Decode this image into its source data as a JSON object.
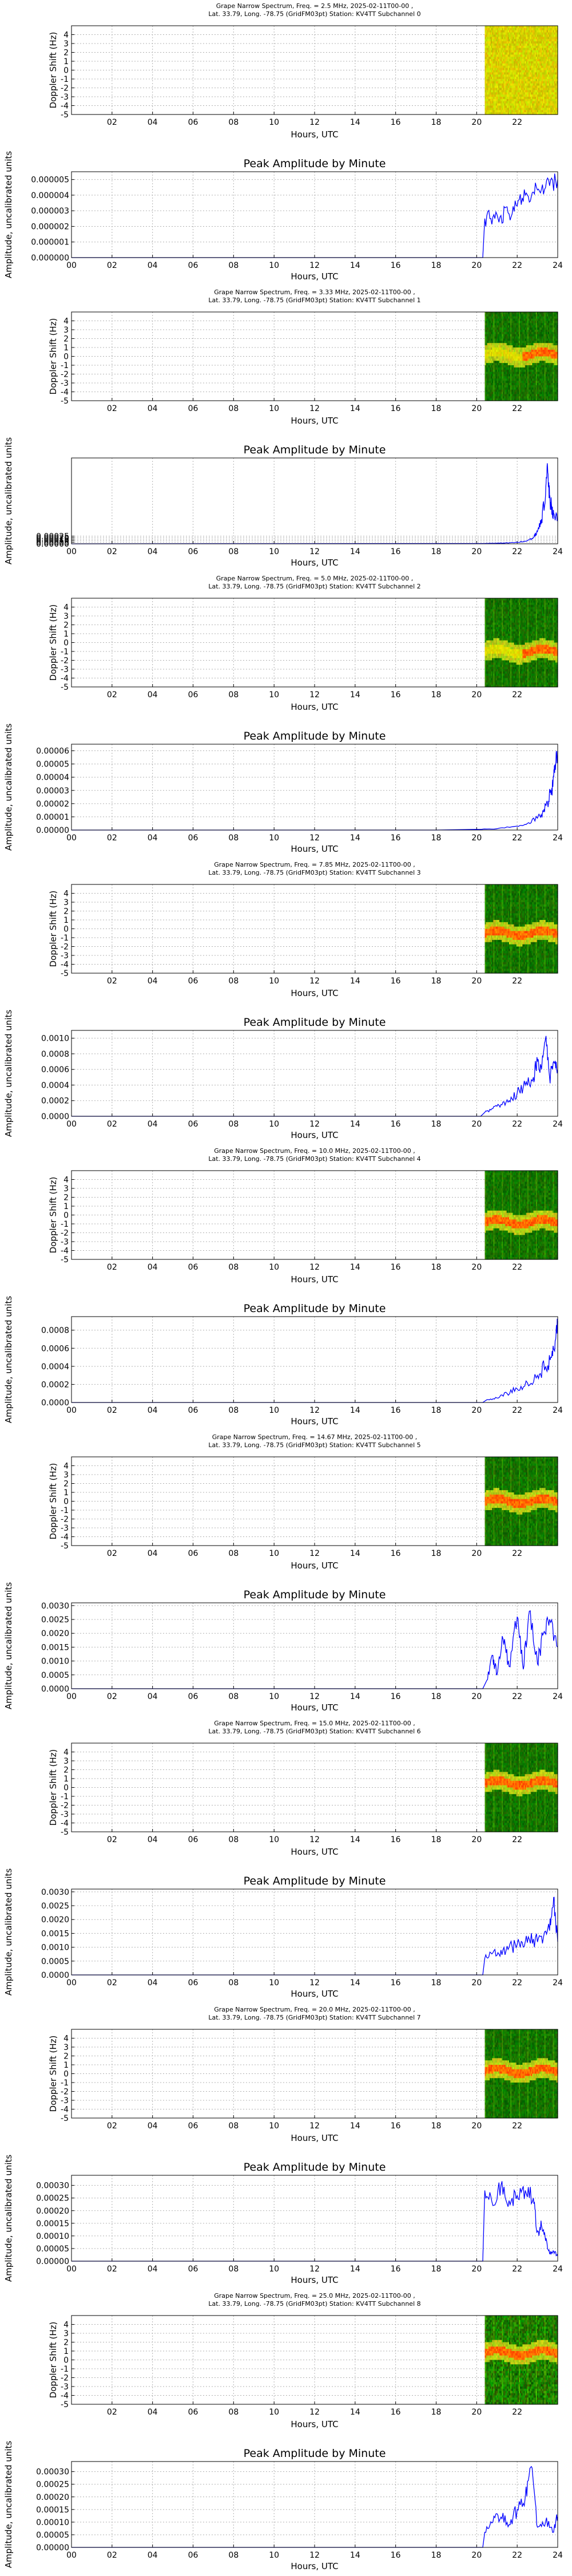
{
  "spectrum_common": {
    "ylabel": "Doppler Shift (Hz)",
    "xlabel": "Hours, UTC",
    "xticks": [
      "02",
      "04",
      "06",
      "08",
      "10",
      "12",
      "14",
      "16",
      "18",
      "20",
      "22"
    ],
    "yticks": [
      "4",
      "3",
      "2",
      "1",
      "0",
      "-1",
      "-2",
      "-3",
      "-4",
      "-5"
    ]
  },
  "amplitude_common": {
    "title": "Peak Amplitude by Minute",
    "ylabel": "Amplitude, uncalibrated units",
    "xlabel": "Hours, UTC",
    "xticks": [
      "00",
      "02",
      "04",
      "06",
      "08",
      "10",
      "12",
      "14",
      "16",
      "18",
      "20",
      "22",
      "24"
    ]
  },
  "colors": {
    "line": "#0000ff",
    "spec_bg_low": "#006400",
    "spec_hot": "#ff5a00",
    "grid": "#b0b0b0"
  },
  "chart_data": [
    {
      "type": "heatmap",
      "subchannel": 0,
      "title_line1": "Grape Narrow Spectrum, Freq. = 2.5 MHz, 2025-02-11T00-00 ,",
      "title_line2": "Lat.  33.79, Long. -78.75 (GridFM03pt) Station: KV4TT Subchannel 0",
      "data_start_hour": 20.4,
      "xlim": [
        0,
        24
      ],
      "ylim": [
        -5,
        5
      ],
      "style": "yellow",
      "trace_hz": null
    },
    {
      "type": "line",
      "subchannel": 0,
      "yticks": [
        "0.000000",
        "0.000001",
        "0.000002",
        "0.000003",
        "0.000004",
        "0.000005"
      ],
      "ylim": [
        0,
        5.5e-06
      ],
      "xlim": [
        0,
        24
      ],
      "x": [
        0,
        20.3,
        20.4,
        20.8,
        21.2,
        21.6,
        22.0,
        22.4,
        22.8,
        23.2,
        23.6,
        24.0
      ],
      "y": [
        0,
        0,
        2.5e-06,
        2.6e-06,
        2.7e-06,
        2.8e-06,
        3.3e-06,
        4e-06,
        4.2e-06,
        4.4e-06,
        4.6e-06,
        5e-06
      ]
    },
    {
      "type": "heatmap",
      "subchannel": 1,
      "title_line1": "Grape Narrow Spectrum, Freq. = 3.33 MHz, 2025-02-11T00-00 ,",
      "title_line2": "Lat.  33.79, Long. -78.75 (GridFM03pt) Station: KV4TT Subchannel 1",
      "data_start_hour": 20.4,
      "xlim": [
        0,
        24
      ],
      "ylim": [
        -5,
        5
      ],
      "style": "green",
      "trace_hz": 0.2
    },
    {
      "type": "line",
      "subchannel": 1,
      "yticks": [
        "0.00000",
        "0.00005",
        "0.00010",
        "0.00015",
        "0.00020",
        "0.00025"
      ],
      "ylim": [
        0,
        0.0028
      ],
      "xlim": [
        0,
        24
      ],
      "x": [
        0,
        20.4,
        21.0,
        21.5,
        22.0,
        22.5,
        22.8,
        23.0,
        23.2,
        23.4,
        23.5,
        23.6,
        23.7,
        23.8,
        24.0
      ],
      "y": [
        0,
        1e-05,
        2e-05,
        3e-05,
        5e-05,
        0.0001,
        0.0002,
        0.0004,
        0.0008,
        0.0016,
        0.0025,
        0.0015,
        0.0012,
        0.001,
        0.0008
      ]
    },
    {
      "type": "heatmap",
      "subchannel": 2,
      "title_line1": "Grape Narrow Spectrum, Freq. = 5.0 MHz, 2025-02-11T00-00 ,",
      "title_line2": "Lat.  33.79, Long. -78.75 (GridFM03pt) Station: KV4TT Subchannel 2",
      "data_start_hour": 20.4,
      "xlim": [
        0,
        24
      ],
      "ylim": [
        -5,
        5
      ],
      "style": "green",
      "trace_hz": -1.0
    },
    {
      "type": "line",
      "subchannel": 2,
      "yticks": [
        "0.00000",
        "0.00001",
        "0.00002",
        "0.00003",
        "0.00004",
        "0.00005",
        "0.00006"
      ],
      "ylim": [
        0,
        6.5e-05
      ],
      "xlim": [
        0,
        24
      ],
      "x": [
        0,
        18.0,
        20.0,
        21.0,
        22.0,
        22.5,
        23.0,
        23.3,
        23.5,
        23.7,
        23.8,
        23.9,
        24.0
      ],
      "y": [
        0,
        0,
        5e-07,
        1e-06,
        3e-06,
        5e-06,
        9e-06,
        1.4e-05,
        2e-05,
        3e-05,
        4e-05,
        5e-05,
        6e-05
      ]
    },
    {
      "type": "heatmap",
      "subchannel": 3,
      "title_line1": "Grape Narrow Spectrum, Freq. = 7.85 MHz, 2025-02-11T00-00 ,",
      "title_line2": "Lat.  33.79, Long. -78.75 (GridFM03pt) Station: KV4TT Subchannel 3",
      "data_start_hour": 20.4,
      "xlim": [
        0,
        24
      ],
      "ylim": [
        -5,
        5
      ],
      "style": "green",
      "trace_hz": -0.5
    },
    {
      "type": "line",
      "subchannel": 3,
      "yticks": [
        "0.0000",
        "0.0002",
        "0.0004",
        "0.0006",
        "0.0008",
        "0.0010"
      ],
      "ylim": [
        0,
        0.0011
      ],
      "xlim": [
        0,
        24
      ],
      "x": [
        0,
        20.2,
        20.4,
        20.8,
        21.2,
        21.6,
        22.0,
        22.4,
        22.8,
        23.0,
        23.2,
        23.4,
        23.6,
        23.8,
        24.0
      ],
      "y": [
        0,
        0,
        5e-05,
        0.0001,
        0.00015,
        0.0002,
        0.0003,
        0.0004,
        0.0005,
        0.0007,
        0.0006,
        0.001,
        0.0005,
        0.0007,
        0.0006
      ]
    },
    {
      "type": "heatmap",
      "subchannel": 4,
      "title_line1": "Grape Narrow Spectrum, Freq. = 10.0 MHz, 2025-02-11T00-00 ,",
      "title_line2": "Lat.  33.79, Long. -78.75 (GridFM03pt) Station: KV4TT Subchannel 4",
      "data_start_hour": 20.4,
      "xlim": [
        0,
        24
      ],
      "ylim": [
        -5,
        5
      ],
      "style": "green",
      "trace_hz": -0.8
    },
    {
      "type": "line",
      "subchannel": 4,
      "yticks": [
        "0.0000",
        "0.0002",
        "0.0004",
        "0.0006",
        "0.0008"
      ],
      "ylim": [
        0,
        0.00095
      ],
      "xlim": [
        0,
        24
      ],
      "x": [
        0,
        20.3,
        20.5,
        21.0,
        21.5,
        22.0,
        22.5,
        23.0,
        23.4,
        23.7,
        23.9,
        24.0
      ],
      "y": [
        0,
        0,
        3e-05,
        5e-05,
        0.0001,
        0.00015,
        0.00022,
        0.0003,
        0.0004,
        0.0005,
        0.0007,
        0.0009
      ]
    },
    {
      "type": "heatmap",
      "subchannel": 5,
      "title_line1": "Grape Narrow Spectrum, Freq. = 14.67 MHz, 2025-02-11T00-00 ,",
      "title_line2": "Lat.  33.79, Long. -78.75 (GridFM03pt) Station: KV4TT Subchannel 5",
      "data_start_hour": 20.4,
      "xlim": [
        0,
        24
      ],
      "ylim": [
        -5,
        5
      ],
      "style": "green",
      "trace_hz": 0.0
    },
    {
      "type": "line",
      "subchannel": 5,
      "yticks": [
        "0.0000",
        "0.0005",
        "0.0010",
        "0.0015",
        "0.0020",
        "0.0025",
        "0.0030"
      ],
      "ylim": [
        0,
        0.0031
      ],
      "xlim": [
        0,
        24
      ],
      "x": [
        0,
        20.3,
        20.5,
        20.8,
        21.0,
        21.3,
        21.6,
        22.0,
        22.3,
        22.6,
        23.0,
        23.3,
        23.6,
        24.0
      ],
      "y": [
        0,
        0,
        0.0003,
        0.0012,
        0.0005,
        0.0018,
        0.0008,
        0.0026,
        0.0007,
        0.0028,
        0.0009,
        0.002,
        0.0025,
        0.0015
      ]
    },
    {
      "type": "heatmap",
      "subchannel": 6,
      "title_line1": "Grape Narrow Spectrum, Freq. = 15.0 MHz, 2025-02-11T00-00 ,",
      "title_line2": "Lat.  33.79, Long. -78.75 (GridFM03pt) Station: KV4TT Subchannel 6",
      "data_start_hour": 20.4,
      "xlim": [
        0,
        24
      ],
      "ylim": [
        -5,
        5
      ],
      "style": "green",
      "trace_hz": 0.5
    },
    {
      "type": "line",
      "subchannel": 6,
      "yticks": [
        "0.0000",
        "0.0005",
        "0.0010",
        "0.0015",
        "0.0020",
        "0.0025",
        "0.0030"
      ],
      "ylim": [
        0,
        0.0031
      ],
      "xlim": [
        0,
        24
      ],
      "x": [
        0,
        20.3,
        20.4,
        20.8,
        21.2,
        21.6,
        22.0,
        22.4,
        22.8,
        23.2,
        23.6,
        23.8,
        24.0
      ],
      "y": [
        0,
        0,
        0.0006,
        0.0008,
        0.0009,
        0.001,
        0.0011,
        0.0012,
        0.0013,
        0.0014,
        0.0016,
        0.0028,
        0.0012
      ]
    },
    {
      "type": "heatmap",
      "subchannel": 7,
      "title_line1": "Grape Narrow Spectrum, Freq. = 20.0 MHz, 2025-02-11T00-00 ,",
      "title_line2": "Lat.  33.79, Long. -78.75 (GridFM03pt) Station: KV4TT Subchannel 7",
      "data_start_hour": 20.4,
      "xlim": [
        0,
        24
      ],
      "ylim": [
        -5,
        5
      ],
      "style": "green",
      "trace_hz": 0.3
    },
    {
      "type": "line",
      "subchannel": 7,
      "yticks": [
        "0.00000",
        "0.00005",
        "0.00010",
        "0.00015",
        "0.00020",
        "0.00025",
        "0.00030"
      ],
      "ylim": [
        0,
        0.00034
      ],
      "xlim": [
        0,
        24
      ],
      "x": [
        0,
        20.3,
        20.4,
        20.8,
        21.2,
        21.6,
        22.0,
        22.4,
        22.8,
        23.0,
        23.2,
        23.4,
        23.6,
        23.8,
        24.0
      ],
      "y": [
        0,
        0,
        0.00028,
        0.00022,
        0.0003,
        0.00024,
        0.00026,
        0.00028,
        0.00025,
        0.00012,
        0.00014,
        8e-05,
        3e-05,
        4e-05,
        2e-05
      ]
    },
    {
      "type": "heatmap",
      "subchannel": 8,
      "title_line1": "Grape Narrow Spectrum, Freq. = 25.0 MHz, 2025-02-11T00-00 ,",
      "title_line2": "Lat.  33.79, Long. -78.75 (GridFM03pt) Station: KV4TT Subchannel 8",
      "data_start_hour": 20.4,
      "xlim": [
        0,
        24
      ],
      "ylim": [
        -5,
        5
      ],
      "style": "green-noisy",
      "trace_hz": 0.8
    },
    {
      "type": "line",
      "subchannel": 8,
      "yticks": [
        "0.00000",
        "0.00005",
        "0.00010",
        "0.00015",
        "0.00020",
        "0.00025",
        "0.00030"
      ],
      "ylim": [
        0,
        0.00034
      ],
      "xlim": [
        0,
        24
      ],
      "x": [
        0,
        20.3,
        20.4,
        20.8,
        21.2,
        21.6,
        22.0,
        22.4,
        22.7,
        23.0,
        23.4,
        23.8,
        24.0
      ],
      "y": [
        0,
        0,
        6e-05,
        0.0001,
        0.00012,
        9e-05,
        0.00015,
        0.0002,
        0.00032,
        8e-05,
        0.0001,
        6e-05,
        0.00012
      ]
    }
  ]
}
